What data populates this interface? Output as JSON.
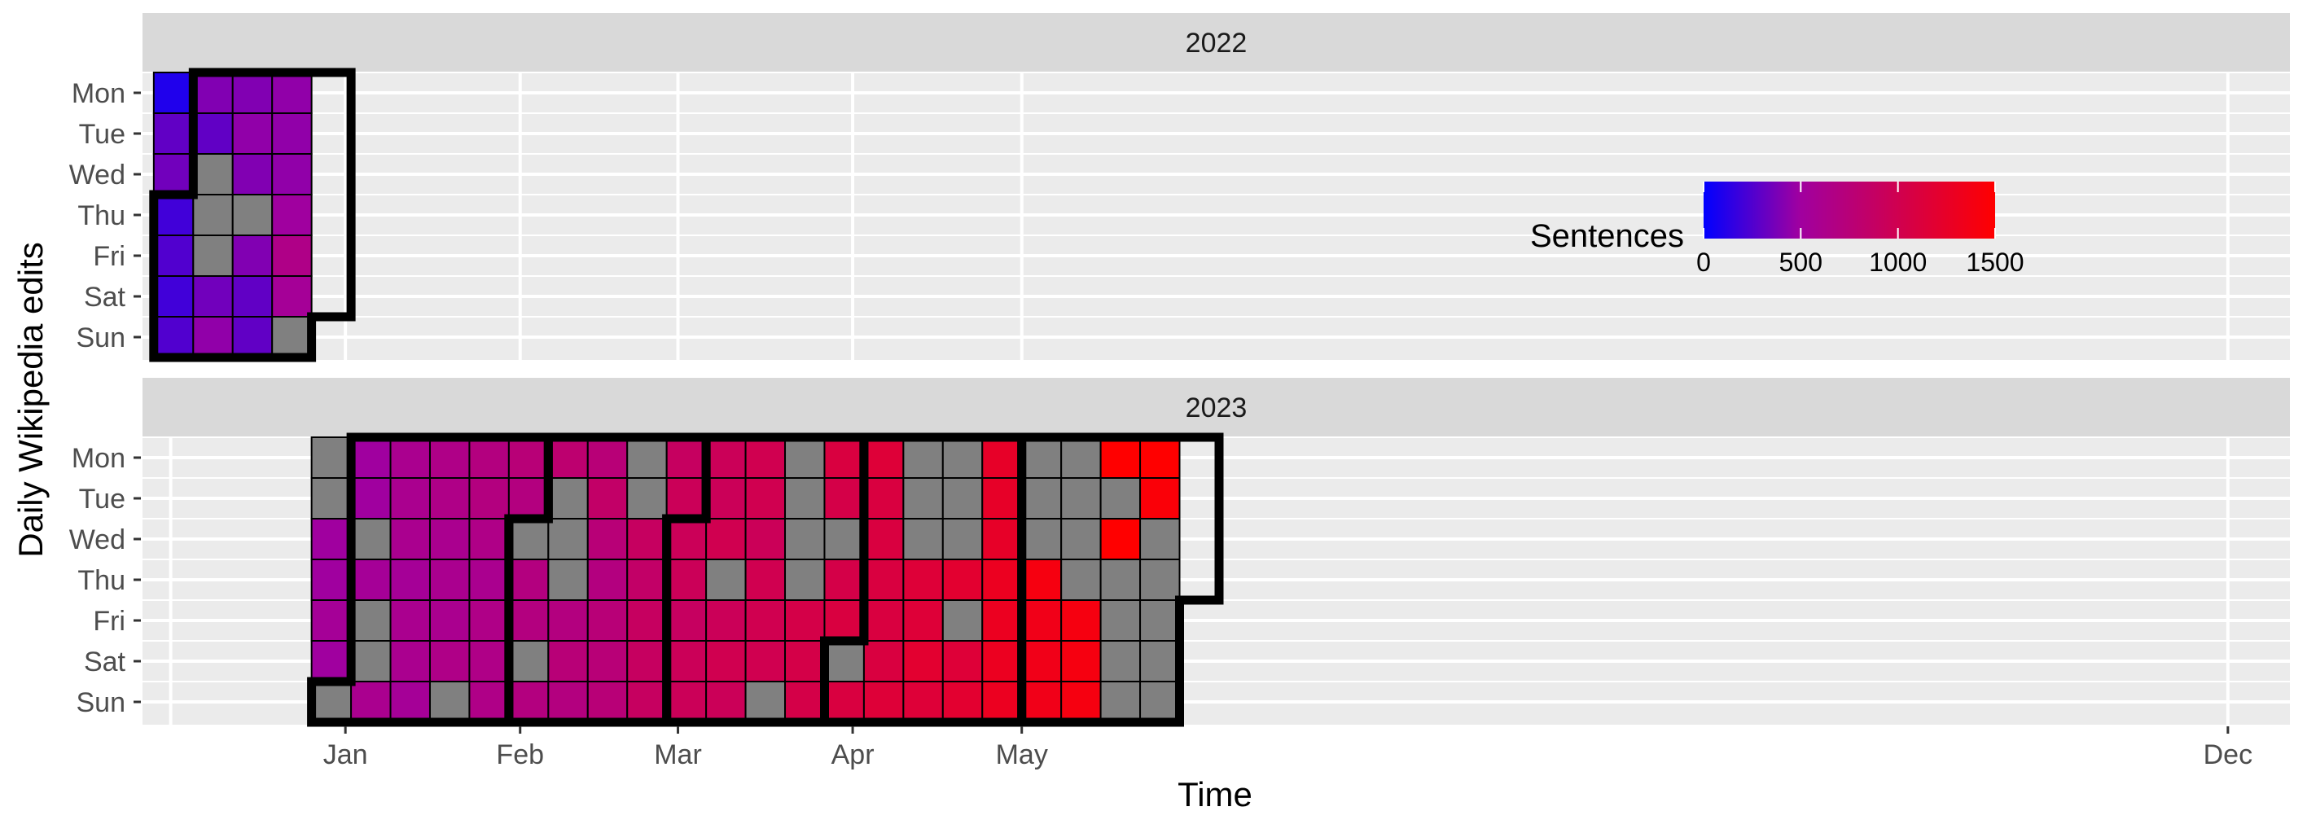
{
  "chart_data": {
    "type": "heatmap",
    "subtype": "calendar",
    "title": "",
    "xlabel": "Time",
    "ylabel": "Daily Wikipedia edits",
    "weekdays": [
      "Mon",
      "Tue",
      "Wed",
      "Thu",
      "Fri",
      "Sat",
      "Sun"
    ],
    "facets": [
      {
        "label": "2022",
        "x_ticks": [
          {
            "label": "Dec",
            "date": "2022-12-01"
          }
        ],
        "first_week_monday": "2022-11-28",
        "week_values": [
          [
            100,
            300,
            350,
            200,
            250,
            200,
            250
          ],
          [
            400,
            300,
            null,
            null,
            null,
            350,
            450
          ],
          [
            400,
            450,
            400,
            null,
            400,
            300,
            300
          ],
          [
            450,
            450,
            450,
            500,
            650,
            550,
            null
          ]
        ]
      },
      {
        "label": "2023",
        "x_ticks": [
          {
            "label": "Jan",
            "date": "2023-01-01"
          },
          {
            "label": "Feb",
            "date": "2023-02-01"
          },
          {
            "label": "Mar",
            "date": "2023-03-01"
          },
          {
            "label": "Apr",
            "date": "2023-04-01"
          },
          {
            "label": "May",
            "date": "2023-05-01"
          },
          {
            "label": "Dec",
            "date": "2023-12-01"
          }
        ],
        "first_week_monday": "2022-12-26",
        "week_values": [
          [
            null,
            null,
            500,
            500,
            550,
            500,
            null
          ],
          [
            500,
            500,
            null,
            550,
            null,
            null,
            600
          ],
          [
            600,
            600,
            600,
            550,
            600,
            600,
            550
          ],
          [
            650,
            650,
            600,
            600,
            600,
            650,
            null
          ],
          [
            700,
            700,
            650,
            600,
            650,
            650,
            650
          ],
          [
            750,
            700,
            null,
            700,
            700,
            null,
            700
          ],
          [
            800,
            null,
            null,
            null,
            700,
            750,
            700
          ],
          [
            750,
            850,
            750,
            700,
            750,
            750,
            750
          ],
          [
            null,
            null,
            900,
            850,
            900,
            900,
            900
          ],
          [
            900,
            950,
            950,
            950,
            900,
            950,
            950
          ],
          [
            950,
            950,
            1000,
            null,
            950,
            1000,
            950
          ],
          [
            1000,
            1000,
            950,
            1000,
            1000,
            1000,
            null
          ],
          [
            null,
            null,
            null,
            null,
            1050,
            1050,
            1050
          ],
          [
            1100,
            1050,
            null,
            1050,
            1100,
            null,
            1100
          ],
          [
            1150,
            1100,
            1100,
            1100,
            1100,
            1100,
            1150
          ],
          [
            null,
            null,
            null,
            1150,
            1150,
            1200,
            1150
          ],
          [
            null,
            null,
            null,
            1200,
            null,
            1150,
            1200
          ],
          [
            1250,
            1250,
            1250,
            1300,
            1300,
            1300,
            1300
          ],
          [
            null,
            null,
            null,
            1400,
            1350,
            1350,
            1350
          ],
          [
            null,
            null,
            null,
            null,
            1400,
            1400,
            1400
          ],
          [
            1500,
            null,
            1550,
            null,
            null,
            null,
            null
          ],
          [
            1500,
            1450,
            null,
            null,
            null,
            null,
            null
          ]
        ]
      }
    ],
    "month_outlines": [
      {
        "facet": 0,
        "start": "2022-12-01",
        "end": "2022-12-31"
      },
      {
        "facet": 1,
        "start": "2023-01-01",
        "end": "2023-01-31"
      },
      {
        "facet": 1,
        "start": "2023-02-01",
        "end": "2023-02-28"
      },
      {
        "facet": 1,
        "start": "2023-03-01",
        "end": "2023-03-31"
      },
      {
        "facet": 1,
        "start": "2023-04-01",
        "end": "2023-04-30"
      },
      {
        "facet": 1,
        "start": "2023-05-01",
        "end": "2023-06-01"
      }
    ],
    "x_range": [
      "2022-11-26",
      "2023-12-12"
    ],
    "missing_color": "#808080",
    "legend": {
      "title": "Sentences",
      "position": "inside-top-right",
      "range": [
        0,
        1500
      ],
      "breaks": [
        0,
        500,
        1000,
        1500
      ],
      "low_color": "#0000ff",
      "mid_color": "#a000a0",
      "high_color": "#ff0000"
    },
    "panel_background": "#ebebeb",
    "strip_background": "#d9d9d9",
    "grid": true
  }
}
